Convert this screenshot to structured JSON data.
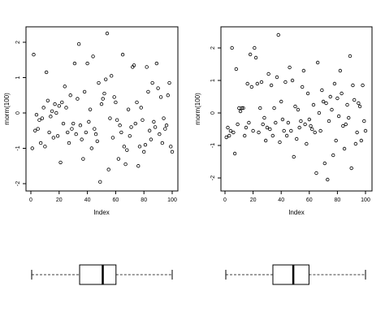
{
  "chart_data": [
    {
      "type": "scatter",
      "xlabel": "Index",
      "ylabel": "rnorm(100)",
      "xlim": [
        0,
        100
      ],
      "ylim": [
        -2.2,
        2.3
      ],
      "xticks": [
        "0",
        "20",
        "40",
        "60",
        "80",
        "100"
      ],
      "yticks": [
        "-2",
        "-1",
        "0",
        "1",
        "2"
      ],
      "x": [
        1,
        2,
        3,
        4,
        5,
        6,
        7,
        8,
        9,
        10,
        11,
        12,
        13,
        14,
        15,
        16,
        17,
        18,
        19,
        20,
        21,
        22,
        23,
        24,
        25,
        26,
        27,
        28,
        29,
        30,
        31,
        32,
        33,
        34,
        35,
        36,
        37,
        38,
        39,
        40,
        41,
        42,
        43,
        44,
        45,
        46,
        47,
        48,
        49,
        50,
        51,
        52,
        53,
        54,
        55,
        56,
        57,
        58,
        59,
        60,
        61,
        62,
        63,
        64,
        65,
        66,
        67,
        68,
        69,
        70,
        71,
        72,
        73,
        74,
        75,
        76,
        77,
        78,
        79,
        80,
        81,
        82,
        83,
        84,
        85,
        86,
        87,
        88,
        89,
        90,
        91,
        92,
        93,
        94,
        95,
        96,
        97,
        98,
        99,
        100
      ],
      "y": [
        -1.0,
        1.65,
        -0.5,
        -0.05,
        -0.45,
        -0.2,
        -0.85,
        -0.15,
        0.15,
        -0.95,
        1.15,
        0.35,
        -0.55,
        -0.1,
        0.05,
        -0.7,
        0.25,
        0.0,
        -0.65,
        0.2,
        -1.4,
        0.3,
        -0.3,
        0.75,
        0.15,
        -0.55,
        -0.85,
        0.5,
        -0.45,
        -0.3,
        1.4,
        -0.6,
        0.4,
        1.95,
        -0.35,
        -0.75,
        -1.3,
        0.6,
        -0.55,
        1.4,
        -0.25,
        0.1,
        -1.0,
        1.6,
        -0.45,
        -0.6,
        -0.8,
        0.85,
        -1.95,
        0.25,
        0.4,
        0.55,
        0.95,
        2.25,
        -1.6,
        -0.15,
        1.05,
        -0.7,
        0.45,
        0.3,
        -0.2,
        -1.3,
        -0.35,
        -0.55,
        1.65,
        -0.95,
        -1.45,
        -1.05,
        0.1,
        -0.65,
        -0.4,
        1.3,
        1.35,
        -0.3,
        0.3,
        -1.5,
        -0.95,
        0.15,
        -0.2,
        -1.1,
        -0.9,
        1.3,
        0.6,
        -0.5,
        -0.75,
        0.85,
        -0.25,
        -0.4,
        1.4,
        0.7,
        -0.6,
        0.45,
        -0.85,
        -0.15,
        -0.45,
        -0.35,
        0.5,
        0.85,
        -0.95,
        -1.1
      ]
    },
    {
      "type": "scatter",
      "xlabel": "Index",
      "ylabel": "rnorm(100)",
      "xlim": [
        0,
        100
      ],
      "ylim": [
        -2.2,
        2.5
      ],
      "xticks": [
        "0",
        "20",
        "40",
        "60",
        "80",
        "100"
      ],
      "yticks": [
        "-2",
        "-1",
        "0",
        "1",
        "2"
      ],
      "x": [
        1,
        2,
        3,
        4,
        5,
        6,
        7,
        8,
        9,
        10,
        11,
        12,
        13,
        14,
        15,
        16,
        17,
        18,
        19,
        20,
        21,
        22,
        23,
        24,
        25,
        26,
        27,
        28,
        29,
        30,
        31,
        32,
        33,
        34,
        35,
        36,
        37,
        38,
        39,
        40,
        41,
        42,
        43,
        44,
        45,
        46,
        47,
        48,
        49,
        50,
        51,
        52,
        53,
        54,
        55,
        56,
        57,
        58,
        59,
        60,
        61,
        62,
        63,
        64,
        65,
        66,
        67,
        68,
        69,
        70,
        71,
        72,
        73,
        74,
        75,
        76,
        77,
        78,
        79,
        80,
        81,
        82,
        83,
        84,
        85,
        86,
        87,
        88,
        89,
        90,
        91,
        92,
        93,
        94,
        95,
        96,
        97,
        98,
        99,
        100
      ],
      "y": [
        -0.75,
        -0.45,
        -0.7,
        -0.55,
        2.0,
        -0.6,
        -1.25,
        1.35,
        -0.35,
        0.15,
        0.05,
        0.15,
        0.15,
        -0.7,
        -0.45,
        0.9,
        -0.3,
        1.8,
        0.8,
        -0.55,
        2.0,
        1.7,
        0.9,
        -0.6,
        0.15,
        0.95,
        -0.35,
        -0.15,
        -0.85,
        -0.45,
        1.2,
        -0.5,
        0.85,
        -0.7,
        0.15,
        -0.3,
        1.1,
        2.4,
        -0.9,
        0.35,
        -0.2,
        -0.55,
        0.95,
        -0.7,
        -0.3,
        1.4,
        -0.55,
        1.0,
        -1.35,
        0.2,
        -0.8,
        0.1,
        -0.45,
        -0.25,
        0.8,
        1.3,
        -0.35,
        -0.95,
        0.6,
        -0.2,
        -0.4,
        -0.5,
        0.25,
        -0.6,
        -1.85,
        1.55,
        0.0,
        -0.55,
        0.7,
        0.35,
        -1.55,
        0.3,
        -2.05,
        -0.25,
        0.5,
        0.1,
        -1.3,
        0.9,
        -0.85,
        0.45,
        -0.1,
        1.3,
        0.6,
        -0.4,
        -1.1,
        -0.35,
        0.25,
        -0.15,
        1.75,
        -1.7,
        0.85,
        0.4,
        -0.95,
        -0.6,
        0.3,
        0.2,
        -0.85,
        0.85,
        -0.25,
        -0.55
      ]
    },
    {
      "type": "boxplot",
      "min": -2.0,
      "q1": -0.55,
      "median": 0.15,
      "q3": 0.55,
      "max": 2.25
    },
    {
      "type": "boxplot",
      "min": -2.05,
      "q1": -0.55,
      "median": 0.1,
      "q3": 0.6,
      "max": 2.4
    }
  ]
}
